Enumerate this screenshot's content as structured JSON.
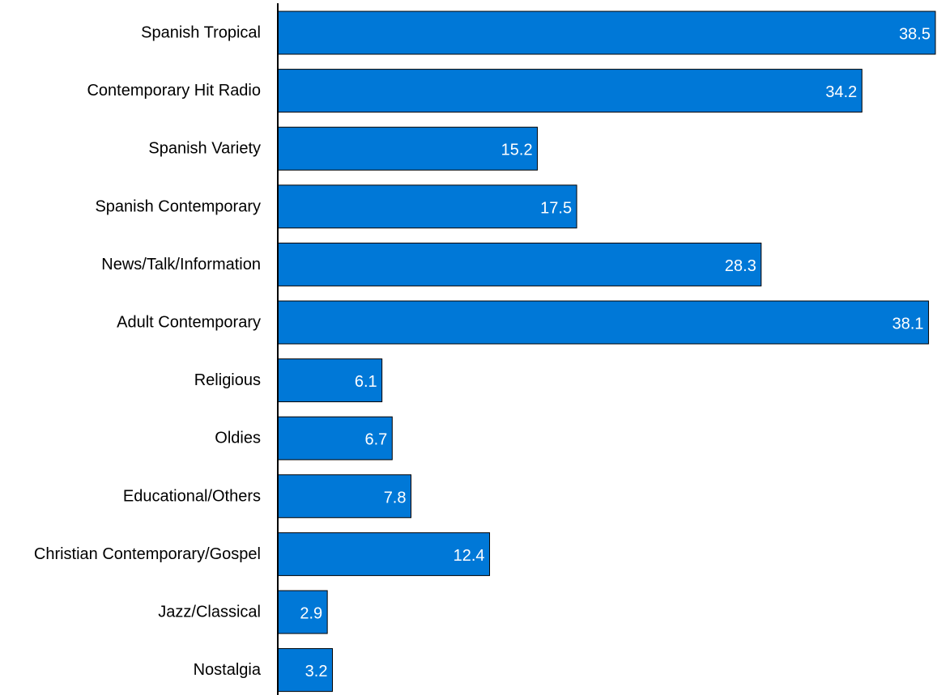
{
  "chart_data": {
    "type": "bar",
    "orientation": "horizontal",
    "title": "",
    "xlabel": "",
    "ylabel": "",
    "categories": [
      "Spanish Tropical",
      "Contemporary Hit Radio",
      "Spanish Variety",
      "Spanish Contemporary",
      "News/Talk/Information",
      "Adult Contemporary",
      "Religious",
      "Oldies",
      "Educational/Others",
      "Christian Contemporary/Gospel",
      "Jazz/Classical",
      "Nostalgia"
    ],
    "values": [
      38.5,
      34.2,
      15.2,
      17.5,
      28.3,
      38.1,
      6.1,
      6.7,
      7.8,
      12.4,
      2.9,
      3.2
    ],
    "data_labels": [
      "38.5",
      "34.2",
      "15.2",
      "17.5",
      "28.3",
      "38.1",
      "6.1",
      "6.7",
      "7.8",
      "12.4",
      "2.9",
      "3.2"
    ],
    "xlim": [
      0,
      38.5
    ],
    "grid": false,
    "legend": "none",
    "bar_color": "#0078D7",
    "bar_outline": "#000000",
    "value_label_color": "#FFFFFF"
  }
}
